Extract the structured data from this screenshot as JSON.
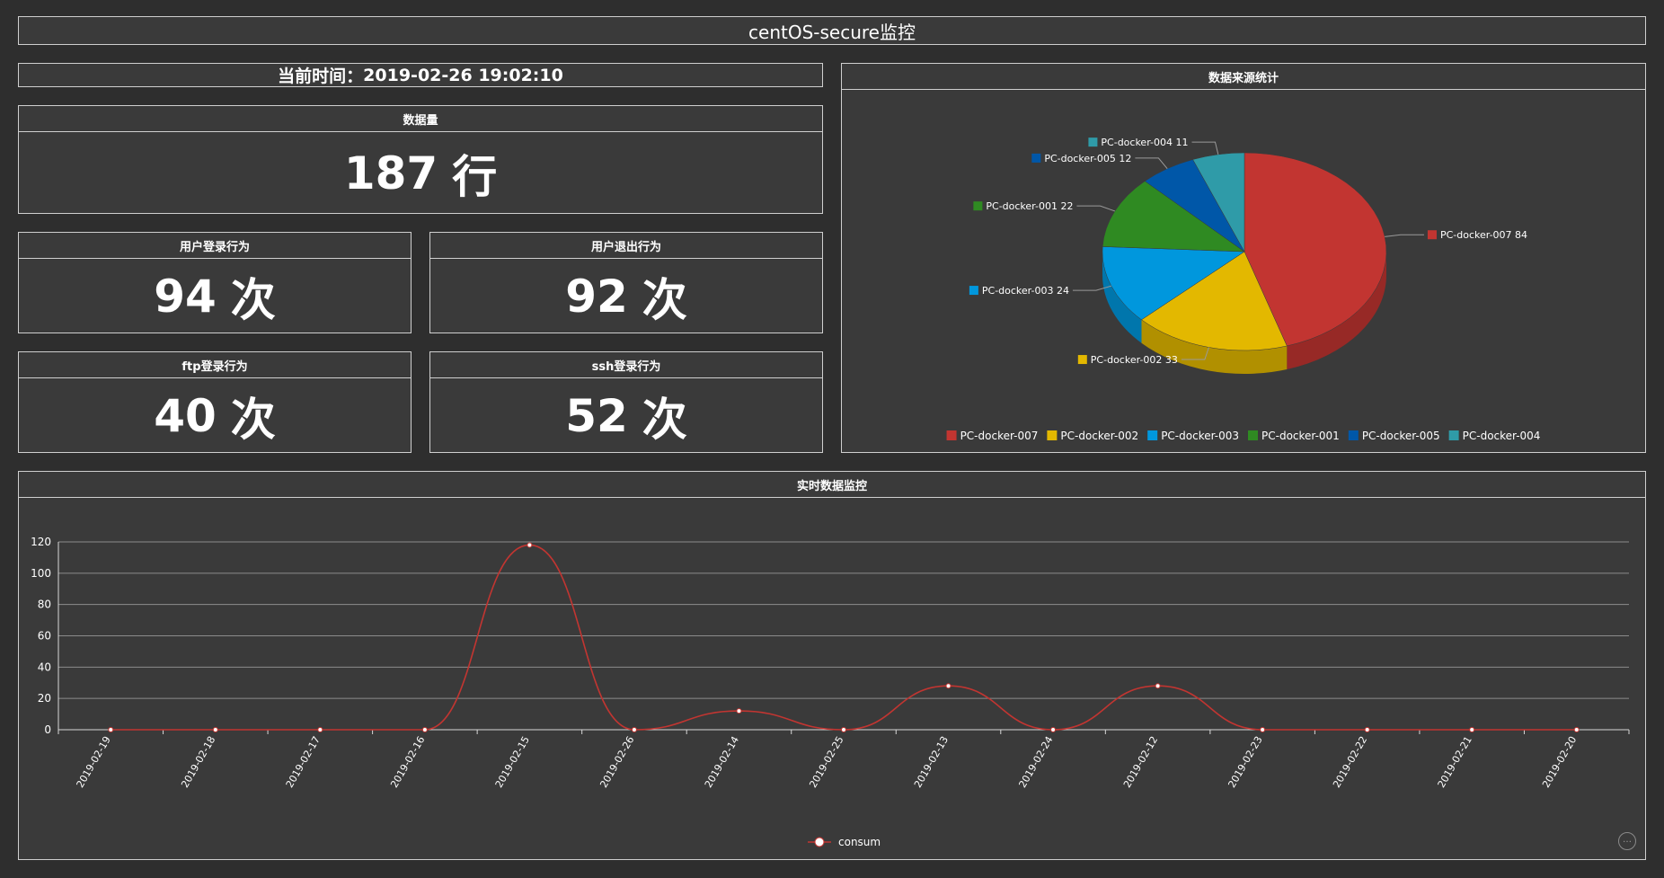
{
  "header": {
    "title": "centOS-secure监控"
  },
  "clock": {
    "label": "当前时间：",
    "value": "2019-02-26 19:02:10"
  },
  "stats": {
    "data_volume": {
      "title": "数据量",
      "value": "187",
      "unit": "行"
    },
    "login": {
      "title": "用户登录行为",
      "value": "94",
      "unit": "次"
    },
    "logout": {
      "title": "用户退出行为",
      "value": "92",
      "unit": "次"
    },
    "ftp": {
      "title": "ftp登录行为",
      "value": "40",
      "unit": "次"
    },
    "ssh": {
      "title": "ssh登录行为",
      "value": "52",
      "unit": "次"
    }
  },
  "colors": {
    "line": "#c23531",
    "pie": [
      "#c23531",
      "#e3b800",
      "#0097dd",
      "#2f8a22",
      "#0057a8",
      "#2f9ba8"
    ]
  },
  "chart_data": [
    {
      "type": "pie",
      "title": "数据来源统计",
      "legend_position": "bottom",
      "slices": [
        {
          "name": "PC-docker-007",
          "value": 84
        },
        {
          "name": "PC-docker-002",
          "value": 33
        },
        {
          "name": "PC-docker-003",
          "value": 24
        },
        {
          "name": "PC-docker-001",
          "value": 22
        },
        {
          "name": "PC-docker-005",
          "value": 12
        },
        {
          "name": "PC-docker-004",
          "value": 11
        }
      ]
    },
    {
      "type": "line",
      "title": "实时数据监控",
      "categories": [
        "2019-02-19",
        "2019-02-18",
        "2019-02-17",
        "2019-02-16",
        "2019-02-15",
        "2019-02-26",
        "2019-02-14",
        "2019-02-25",
        "2019-02-13",
        "2019-02-24",
        "2019-02-12",
        "2019-02-23",
        "2019-02-22",
        "2019-02-21",
        "2019-02-20"
      ],
      "series": [
        {
          "name": "consum",
          "values": [
            0,
            0,
            0,
            0,
            118,
            0,
            12,
            0,
            28,
            0,
            28,
            0,
            0,
            0,
            0
          ]
        }
      ],
      "ylim": [
        0,
        120
      ],
      "yticks": [
        0,
        20,
        40,
        60,
        80,
        100,
        120
      ],
      "grid": true,
      "legend_position": "bottom"
    }
  ]
}
